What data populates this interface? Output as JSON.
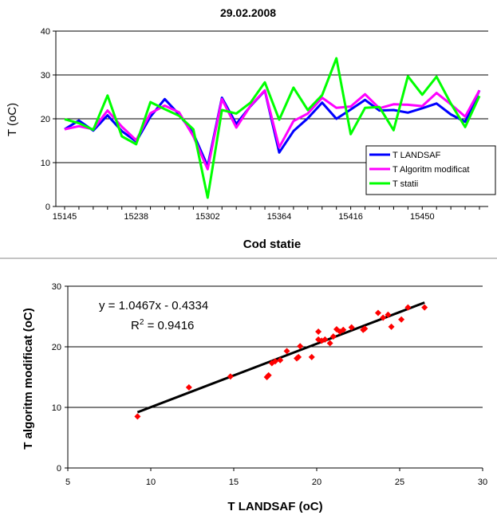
{
  "chart_data": [
    {
      "type": "line",
      "title": "29.02.2008",
      "xlabel": "Cod statie",
      "ylabel": "T (oC)",
      "ylim": [
        0,
        40
      ],
      "yticks": [
        0,
        10,
        20,
        30,
        40
      ],
      "grid": "horizontal",
      "legend_position": "bottom-right",
      "x_tick_labels": [
        {
          "index": 0,
          "label": "15145"
        },
        {
          "index": 5,
          "label": "15238"
        },
        {
          "index": 10,
          "label": "15302"
        },
        {
          "index": 15,
          "label": "15364"
        },
        {
          "index": 20,
          "label": "15416"
        },
        {
          "index": 25,
          "label": "15450"
        }
      ],
      "series": [
        {
          "name": "T LANDSAF",
          "color": "#0000FF",
          "values": [
            17.6,
            19.6,
            17.3,
            20.8,
            17.2,
            14.8,
            20.5,
            24.5,
            21.0,
            16.6,
            9.2,
            24.8,
            18.8,
            22.9,
            26.4,
            12.3,
            17.2,
            20.1,
            23.7,
            20.0,
            22.1,
            24.3,
            21.9,
            22.0,
            21.4,
            22.4,
            23.5,
            21.0,
            19.3,
            26.5
          ]
        },
        {
          "name": "T Algoritm modificat",
          "color": "#FF00FF",
          "values": [
            17.6,
            18.3,
            17.6,
            21.9,
            18.2,
            15.1,
            21.3,
            23.0,
            21.5,
            16.0,
            8.5,
            24.5,
            18.0,
            23.0,
            26.5,
            13.5,
            19.5,
            21.2,
            24.8,
            22.5,
            22.8,
            25.6,
            22.4,
            23.3,
            23.2,
            22.9,
            25.9,
            23.3,
            20.5,
            26.5
          ]
        },
        {
          "name": "T statii",
          "color": "#00FF00",
          "values": [
            19.9,
            19.0,
            17.5,
            25.3,
            16.0,
            14.2,
            23.8,
            22.2,
            20.7,
            17.6,
            2.0,
            22.0,
            21.2,
            23.7,
            28.3,
            19.8,
            27.1,
            22.0,
            25.4,
            33.8,
            16.5,
            22.5,
            22.7,
            17.4,
            29.7,
            25.5,
            29.6,
            23.5,
            18.1,
            25.2
          ]
        }
      ]
    },
    {
      "type": "scatter",
      "xlabel": "T LANDSAF (oC)",
      "ylabel": "T algoritm modificat (oC)",
      "xlim": [
        5,
        30
      ],
      "ylim": [
        0,
        30
      ],
      "xticks": [
        5,
        10,
        15,
        20,
        25,
        30
      ],
      "yticks": [
        0,
        10,
        20,
        30
      ],
      "grid": "horizontal",
      "marker_color": "#FF0000",
      "trendline": {
        "slope": 1.0467,
        "intercept": -0.4334,
        "x_range": [
          9.2,
          26.5
        ],
        "color": "#000000"
      },
      "equation_text": "y = 1.0467x - 0.4334",
      "r2_text": "R",
      "r2_sup": "2",
      "r2_value_text": " = 0.9416",
      "points": [
        [
          9.2,
          8.5
        ],
        [
          12.3,
          13.3
        ],
        [
          14.8,
          15.1
        ],
        [
          17.0,
          15.0
        ],
        [
          17.1,
          15.3
        ],
        [
          17.3,
          17.3
        ],
        [
          17.5,
          17.6
        ],
        [
          17.8,
          17.8
        ],
        [
          18.2,
          19.3
        ],
        [
          18.8,
          18.1
        ],
        [
          18.9,
          18.3
        ],
        [
          19.0,
          20.1
        ],
        [
          19.7,
          18.3
        ],
        [
          20.1,
          21.2
        ],
        [
          20.1,
          22.5
        ],
        [
          20.3,
          21.0
        ],
        [
          20.5,
          21.2
        ],
        [
          20.8,
          20.6
        ],
        [
          21.0,
          21.7
        ],
        [
          21.2,
          22.9
        ],
        [
          21.4,
          22.5
        ],
        [
          21.6,
          22.8
        ],
        [
          22.1,
          23.2
        ],
        [
          22.8,
          22.8
        ],
        [
          22.9,
          23.0
        ],
        [
          23.7,
          25.6
        ],
        [
          24.0,
          24.8
        ],
        [
          24.3,
          25.3
        ],
        [
          24.5,
          23.3
        ],
        [
          25.1,
          24.5
        ],
        [
          25.5,
          26.5
        ],
        [
          26.5,
          26.5
        ]
      ]
    }
  ]
}
